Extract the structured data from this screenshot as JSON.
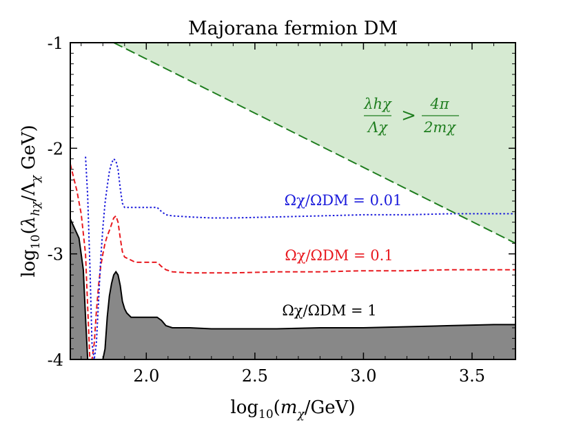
{
  "chart_data": {
    "type": "line",
    "title": "Majorana fermion DM",
    "xlabel": "log10(mχ/GeV)",
    "ylabel": "log10(λhχ/Λχ GeV)",
    "xlim": [
      1.65,
      3.7
    ],
    "ylim": [
      -4,
      -1
    ],
    "xticks": [
      2.0,
      2.5,
      3.0,
      3.5
    ],
    "xtick_labels": [
      "2.0",
      "2.5",
      "3.0",
      "3.5"
    ],
    "yticks": [
      -1,
      -2,
      -3,
      -4
    ],
    "ytick_labels": [
      "-1",
      "-2",
      "-3",
      "-4"
    ],
    "series": [
      {
        "name": "Ωχ/ΩDM = 1",
        "label_text": "Ωχ/ΩDM = 1",
        "color": "#000000",
        "style": "solid",
        "fill_below": "#888888",
        "x": [
          1.65,
          1.69,
          1.71,
          1.72,
          1.73,
          1.75,
          1.76,
          1.77,
          1.78,
          1.79,
          1.8,
          1.81,
          1.82,
          1.83,
          1.84,
          1.85,
          1.86,
          1.87,
          1.88,
          1.89,
          1.9,
          1.91,
          1.93,
          1.95,
          2.0,
          2.05,
          2.07,
          2.09,
          2.12,
          2.2,
          2.3,
          2.4,
          2.6,
          2.8,
          3.0,
          3.2,
          3.4,
          3.6,
          3.7
        ],
        "y": [
          -2.67,
          -2.85,
          -3.15,
          -3.6,
          -4.0,
          -4.0,
          -4.0,
          -4.0,
          -4.0,
          -4.0,
          -4.0,
          -3.9,
          -3.6,
          -3.4,
          -3.28,
          -3.2,
          -3.17,
          -3.2,
          -3.3,
          -3.45,
          -3.52,
          -3.56,
          -3.6,
          -3.6,
          -3.6,
          -3.6,
          -3.63,
          -3.68,
          -3.7,
          -3.7,
          -3.71,
          -3.71,
          -3.71,
          -3.7,
          -3.7,
          -3.69,
          -3.68,
          -3.67,
          -3.67
        ]
      },
      {
        "name": "Ωχ/ΩDM = 0.1",
        "label_text": "Ωχ/ΩDM = 0.1",
        "color": "#e8191f",
        "style": "dashed",
        "x": [
          1.65,
          1.68,
          1.7,
          1.72,
          1.73,
          1.74,
          1.75,
          1.76,
          1.77,
          1.78,
          1.79,
          1.8,
          1.81,
          1.82,
          1.83,
          1.84,
          1.85,
          1.86,
          1.87,
          1.88,
          1.89,
          1.9,
          1.92,
          1.95,
          2.0,
          2.05,
          2.07,
          2.09,
          2.12,
          2.2,
          2.3,
          2.4,
          2.6,
          2.8,
          3.0,
          3.2,
          3.4,
          3.6,
          3.7
        ],
        "y": [
          -2.15,
          -2.4,
          -2.62,
          -3.0,
          -3.5,
          -4.0,
          -4.0,
          -3.85,
          -3.55,
          -3.3,
          -3.12,
          -3.0,
          -2.9,
          -2.83,
          -2.78,
          -2.72,
          -2.66,
          -2.64,
          -2.7,
          -2.85,
          -2.98,
          -3.03,
          -3.05,
          -3.08,
          -3.08,
          -3.08,
          -3.12,
          -3.15,
          -3.17,
          -3.18,
          -3.18,
          -3.18,
          -3.17,
          -3.17,
          -3.16,
          -3.16,
          -3.15,
          -3.15,
          -3.15
        ]
      },
      {
        "name": "Ωχ/ΩDM = 0.01",
        "label_text": "Ωχ/ΩDM = 0.01",
        "color": "#1a1adb",
        "style": "dotted",
        "x": [
          1.72,
          1.73,
          1.74,
          1.75,
          1.76,
          1.77,
          1.78,
          1.79,
          1.8,
          1.81,
          1.82,
          1.83,
          1.84,
          1.85,
          1.86,
          1.87,
          1.88,
          1.89,
          1.9,
          1.92,
          1.95,
          2.0,
          2.05,
          2.07,
          2.09,
          2.12,
          2.2,
          2.3,
          2.4,
          2.6,
          2.8,
          3.0,
          3.2,
          3.4,
          3.6,
          3.7
        ],
        "y": [
          -2.08,
          -2.45,
          -3.1,
          -3.85,
          -4.0,
          -3.85,
          -3.45,
          -3.05,
          -2.75,
          -2.52,
          -2.36,
          -2.22,
          -2.14,
          -2.1,
          -2.12,
          -2.2,
          -2.38,
          -2.52,
          -2.56,
          -2.56,
          -2.56,
          -2.56,
          -2.56,
          -2.6,
          -2.63,
          -2.64,
          -2.65,
          -2.66,
          -2.66,
          -2.65,
          -2.64,
          -2.63,
          -2.63,
          -2.62,
          -2.62,
          -2.62
        ]
      },
      {
        "name": "perturbativity bound",
        "color": "#1e7d1e",
        "style": "dashed",
        "fill_above": "#d6ead2",
        "x": [
          1.85,
          3.7
        ],
        "y": [
          -1.0,
          -2.9
        ]
      }
    ],
    "annotations": {
      "perturbativity_lhs_num": "λhχ",
      "perturbativity_lhs_den": "Λχ",
      "perturbativity_op": ">",
      "perturbativity_rhs_num": "4π",
      "perturbativity_rhs_den": "2mχ"
    },
    "legend": "none"
  }
}
